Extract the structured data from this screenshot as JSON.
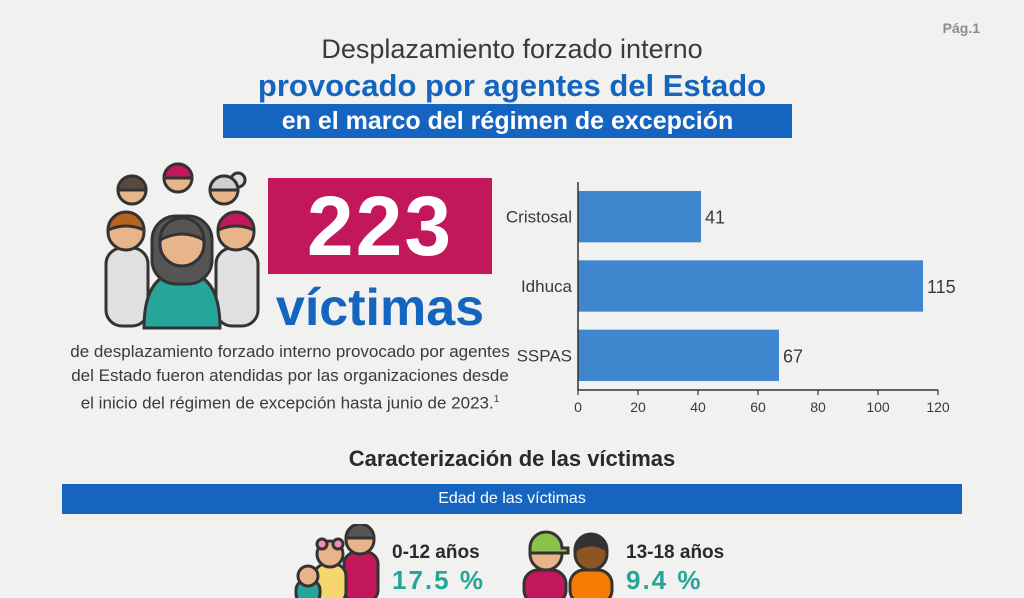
{
  "page": {
    "number": "Pág.1"
  },
  "header": {
    "line1": "Desplazamiento forzado interno",
    "line2": "provocado por agentes del Estado",
    "line3": "en el marco del régimen de excepción"
  },
  "highlight": {
    "number": "223",
    "word": "víctimas",
    "description": "de desplazamiento forzado interno provocado por agentes del Estado fueron atendidas por las organizaciones desde el inicio del régimen de excepción hasta junio de 2023.",
    "footnote": "1"
  },
  "chart_data": {
    "type": "bar",
    "orientation": "horizontal",
    "categories": [
      "Cristosal",
      "Idhuca",
      "SSPAS"
    ],
    "values": [
      41,
      115,
      67
    ],
    "xlim": [
      0,
      120
    ],
    "xticks": [
      0,
      20,
      40,
      60,
      80,
      100,
      120
    ],
    "bar_color": "#3f86cf",
    "grid": false,
    "legend": "none"
  },
  "characterization": {
    "title": "Caracterización de las víctimas",
    "band_label": "Edad de las víctimas",
    "groups": [
      {
        "range": "0-12 años",
        "percent": "17.5 %"
      },
      {
        "range": "13-18 años",
        "percent": "9.4 %"
      }
    ]
  },
  "colors": {
    "blue": "#1565c0",
    "magenta": "#c2185b",
    "teal": "#26a69a"
  }
}
